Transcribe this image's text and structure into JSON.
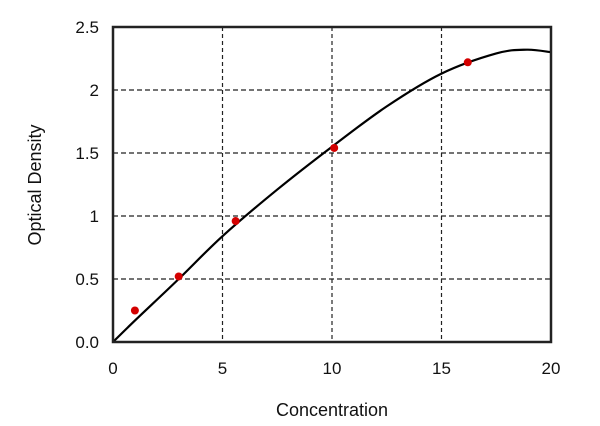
{
  "chart_data": {
    "type": "scatter",
    "title": "",
    "xlabel": "Concentration",
    "ylabel": "Optical Density",
    "xlim": [
      0,
      20
    ],
    "ylim": [
      0,
      2.5
    ],
    "x_ticks": [
      "0",
      "5",
      "10",
      "15",
      "20"
    ],
    "y_ticks": [
      "0.0",
      "0.5",
      "1",
      "1.5",
      "2",
      "2.5"
    ],
    "grid": true,
    "grid_style": "dashed",
    "points": {
      "color": "#d40000",
      "x": [
        1,
        3,
        5.6,
        10.1,
        16.2
      ],
      "y": [
        0.25,
        0.52,
        0.96,
        1.54,
        2.22
      ]
    },
    "fit_curve": {
      "color": "#000000",
      "x": [
        0,
        1,
        3,
        5,
        7.5,
        10,
        12.5,
        15,
        17.5,
        18.9,
        20
      ],
      "y": [
        0,
        0.17,
        0.5,
        0.84,
        1.21,
        1.55,
        1.87,
        2.13,
        2.29,
        2.32,
        2.3
      ]
    }
  }
}
